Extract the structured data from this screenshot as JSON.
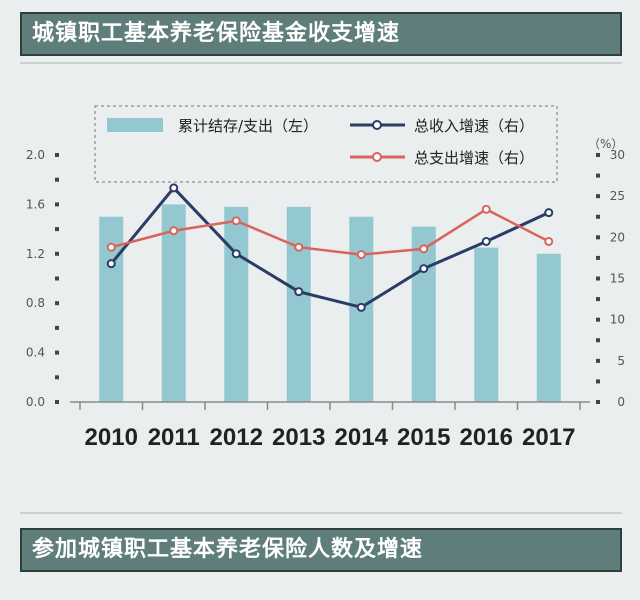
{
  "header": {
    "title": "城镇职工基本养老保险基金收支增速"
  },
  "footer": {
    "title": "参加城镇职工基本养老保险人数及增速"
  },
  "chart_data": {
    "type": "bar+line",
    "categories": [
      "2010",
      "2011",
      "2012",
      "2013",
      "2014",
      "2015",
      "2016",
      "2017"
    ],
    "left_axis": {
      "ylim": [
        0,
        2.0
      ],
      "ticks": [
        "0.0",
        "0.4",
        "0.8",
        "1.2",
        "1.6",
        "2.0"
      ]
    },
    "right_axis": {
      "unit": "（%）",
      "ylim": [
        0,
        30
      ],
      "ticks": [
        "0",
        "5",
        "10",
        "15",
        "20",
        "25",
        "30"
      ]
    },
    "series": [
      {
        "name": "累计结存/支出（左）",
        "kind": "bar",
        "axis": "left",
        "color": "#93c8d0",
        "values": [
          1.5,
          1.6,
          1.58,
          1.58,
          1.5,
          1.42,
          1.25,
          1.2
        ]
      },
      {
        "name": "总收入增速（右）",
        "kind": "line",
        "axis": "right",
        "color": "#2b3c66",
        "values": [
          16.8,
          26.0,
          18.0,
          13.4,
          11.5,
          16.2,
          19.5,
          23.0
        ]
      },
      {
        "name": "总支出增速（右）",
        "kind": "line",
        "axis": "right",
        "color": "#d9645c",
        "values": [
          18.8,
          20.8,
          22.0,
          18.8,
          17.9,
          18.6,
          23.4,
          19.5
        ]
      }
    ],
    "legend_position": "top",
    "grid": false
  }
}
